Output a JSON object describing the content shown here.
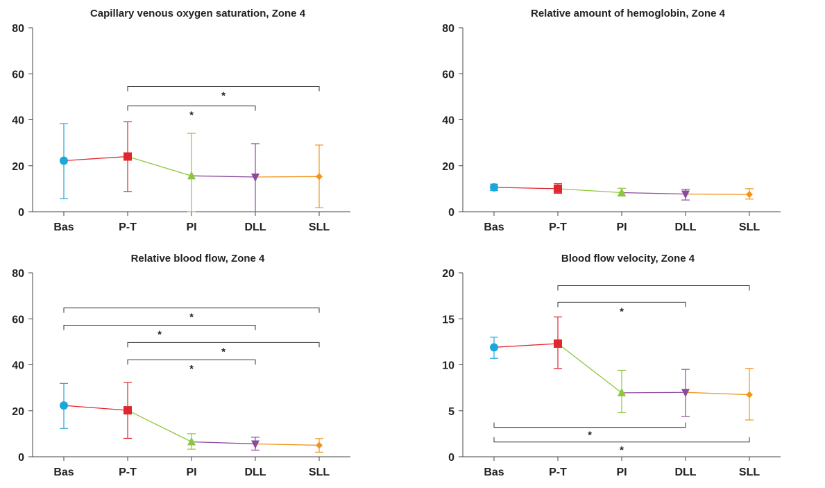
{
  "chart_data": [
    {
      "type": "line",
      "title": "Capillary venous oxygen saturation, Zone 4",
      "categories": [
        "Bas",
        "P-T",
        "PI",
        "DLL",
        "SLL"
      ],
      "ylim": [
        0,
        80
      ],
      "yticks": [
        0,
        20,
        40,
        60,
        80
      ],
      "values": [
        22.2,
        24.0,
        15.6,
        15.1,
        15.3
      ],
      "err_lower": [
        5.7,
        8.8,
        0,
        0,
        1.7
      ],
      "err_upper": [
        38.3,
        39.1,
        34.1,
        29.6,
        29.0
      ],
      "significance": [
        {
          "from": "P-T",
          "to": "DLL",
          "level": 46,
          "label": "*"
        },
        {
          "from": "P-T",
          "to": "SLL",
          "level": 54.5,
          "label": "*"
        }
      ]
    },
    {
      "type": "line",
      "title": "Relative amount of hemoglobin, Zone 4",
      "categories": [
        "Bas",
        "P-T",
        "PI",
        "DLL",
        "SLL"
      ],
      "ylim": [
        0,
        80
      ],
      "yticks": [
        0,
        20,
        40,
        60,
        80
      ],
      "values": [
        10.6,
        10.0,
        8.3,
        7.7,
        7.5
      ],
      "err_lower": [
        9.2,
        8.0,
        6.8,
        5.1,
        5.5
      ],
      "err_upper": [
        12.0,
        12.2,
        10.2,
        9.8,
        10.0
      ],
      "significance": []
    },
    {
      "type": "line",
      "title": "Relative blood flow, Zone 4",
      "categories": [
        "Bas",
        "P-T",
        "PI",
        "DLL",
        "SLL"
      ],
      "ylim": [
        0,
        80
      ],
      "yticks": [
        0,
        20,
        40,
        60,
        80
      ],
      "values": [
        22.3,
        20.2,
        6.5,
        5.6,
        5.0
      ],
      "err_lower": [
        12.3,
        8.0,
        3.3,
        2.9,
        2.0
      ],
      "err_upper": [
        31.9,
        32.3,
        10.0,
        8.5,
        7.9
      ],
      "significance": [
        {
          "from": "Bas",
          "to": "SLL",
          "level": 64.7,
          "label": "*"
        },
        {
          "from": "Bas",
          "to": "DLL",
          "level": 57.2,
          "label": "*"
        },
        {
          "from": "P-T",
          "to": "SLL",
          "level": 49.7,
          "label": "*"
        },
        {
          "from": "P-T",
          "to": "DLL",
          "level": 42.2,
          "label": "*"
        }
      ]
    },
    {
      "type": "line",
      "title": "Blood flow velocity, Zone 4",
      "categories": [
        "Bas",
        "P-T",
        "PI",
        "DLL",
        "SLL"
      ],
      "ylim": [
        0,
        20
      ],
      "yticks": [
        0,
        5,
        10,
        15,
        20
      ],
      "values": [
        11.9,
        12.3,
        6.95,
        7.0,
        6.75
      ],
      "err_lower": [
        10.7,
        9.6,
        4.8,
        4.4,
        4.0
      ],
      "err_upper": [
        13.0,
        15.2,
        9.4,
        9.5,
        9.6
      ],
      "significance": [
        {
          "from": "P-T",
          "to": "SLL",
          "level": 18.6,
          "label": ""
        },
        {
          "from": "P-T",
          "to": "DLL",
          "level": 16.8,
          "label": "*"
        },
        {
          "from": "Bas",
          "to": "DLL",
          "level": 3.2,
          "label": "*"
        },
        {
          "from": "Bas",
          "to": "SLL",
          "level": 1.6,
          "label": "*"
        }
      ]
    }
  ],
  "colors": {
    "Bas": "#1aa7dc",
    "P-T": "#e0262f",
    "PI": "#8cc63e",
    "DLL": "#8b4a9c",
    "SLL": "#f0951c",
    "axis": "#444444",
    "bracket": "#333333"
  },
  "markers": {
    "Bas": "circle",
    "P-T": "square",
    "PI": "triangle-up",
    "DLL": "triangle-down",
    "SLL": "diamond"
  }
}
